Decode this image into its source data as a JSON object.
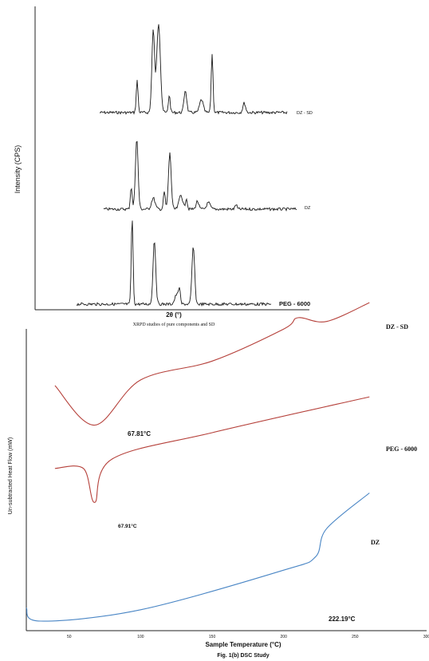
{
  "chart_data": [
    {
      "type": "line",
      "title": "XRPD studies of pure components and SD",
      "xlabel": "2θ (°)",
      "ylabel": "Intensity (CPS)",
      "grid": false,
      "series": [
        {
          "name": "DZ - SD",
          "peaks": [
            12,
            15,
            16,
            18,
            21,
            24,
            26,
            32
          ]
        },
        {
          "name": "DZ",
          "peaks": [
            10,
            11,
            14,
            16,
            17,
            19,
            20,
            22,
            24,
            29
          ]
        },
        {
          "name": "PEG - 6000",
          "peaks": [
            15,
            19,
            23,
            23.5,
            26
          ]
        }
      ]
    },
    {
      "type": "line",
      "title": "Fig. 1(b) DSC Study",
      "xlabel": "Sample Temperature (°C)",
      "ylabel": "Un-subtracted Heat Flow (mW)",
      "xticks": [
        50,
        100,
        150,
        200,
        250,
        300
      ],
      "xlim": [
        20,
        300
      ],
      "grid": false,
      "series": [
        {
          "name": "DZ - SD",
          "peak_label": "67.81°C",
          "x": [
            40,
            67.81,
            100,
            150,
            200,
            210,
            230,
            260
          ],
          "y": [
            -8.6,
            -10.7,
            -8.3,
            -7.3,
            -5.6,
            -5.0,
            -5.2,
            -4.2
          ]
        },
        {
          "name": "PEG - 6000",
          "peak_label": "67.91°C",
          "x": [
            40,
            60,
            67.91,
            80,
            150,
            260
          ],
          "y": [
            -13.0,
            -13.0,
            -14.8,
            -12.5,
            -11.1,
            -9.2
          ]
        },
        {
          "name": "DZ",
          "peak_label": "222.19°C",
          "x": [
            20,
            30,
            100,
            200,
            222.19,
            230,
            260
          ],
          "y": [
            -20.4,
            -21.1,
            -20.5,
            -18.4,
            -17.7,
            -16.2,
            -14.3
          ]
        }
      ]
    }
  ]
}
